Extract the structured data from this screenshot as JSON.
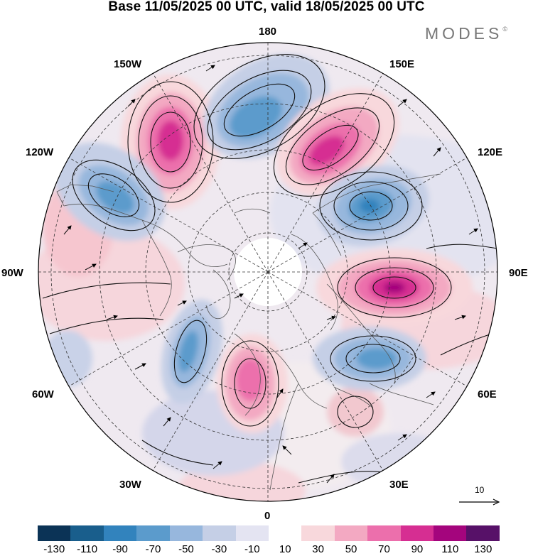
{
  "header": {
    "title": "Base 11/05/2025 00 UTC, valid 18/05/2025 00 UTC",
    "brand": "MODES",
    "brand_mark": "©"
  },
  "map": {
    "projection": "north-polar-stereographic",
    "longitude_labels": {
      "top": "180",
      "upper_left": "150W",
      "upper_right": "150E",
      "left_upper": "120W",
      "right_upper": "120E",
      "left": "90W",
      "right": "90E",
      "left_lower": "60W",
      "right_lower": "60E",
      "lower_left": "30W",
      "lower_right": "30E",
      "bottom": "0"
    },
    "reference_vector": {
      "label": "10"
    },
    "anomaly_centers": [
      {
        "sign": "positive",
        "location": "Bering Sea / Alaska",
        "peak": 110
      },
      {
        "sign": "negative",
        "location": "Gulf of Alaska / North Pacific",
        "peak": -70
      },
      {
        "sign": "positive",
        "location": "Northeast Siberia",
        "peak": 90
      },
      {
        "sign": "negative",
        "location": "Central Siberia / Far East",
        "peak": -70
      },
      {
        "sign": "positive",
        "location": "Central Asia",
        "peak": 110
      },
      {
        "sign": "negative",
        "location": "Western Canada",
        "peak": -70
      },
      {
        "sign": "negative",
        "location": "Ural region",
        "peak": -70
      },
      {
        "sign": "positive",
        "location": "Scandinavia",
        "peak": 70
      },
      {
        "sign": "negative",
        "location": "North Atlantic",
        "peak": -70
      }
    ]
  },
  "colorbar": {
    "ticks": [
      "-130",
      "-110",
      "-90",
      "-70",
      "-50",
      "-30",
      "-10",
      "10",
      "30",
      "50",
      "70",
      "90",
      "110",
      "130"
    ],
    "colors": [
      "#0b3356",
      "#195e8c",
      "#3283bd",
      "#5b9bcc",
      "#97b7dd",
      "#c5cfe6",
      "#e4e4f2",
      "#ffffff",
      "#f8d8dc",
      "#f3a9c2",
      "#ec6fac",
      "#d62e92",
      "#a4057d",
      "#571168"
    ]
  }
}
